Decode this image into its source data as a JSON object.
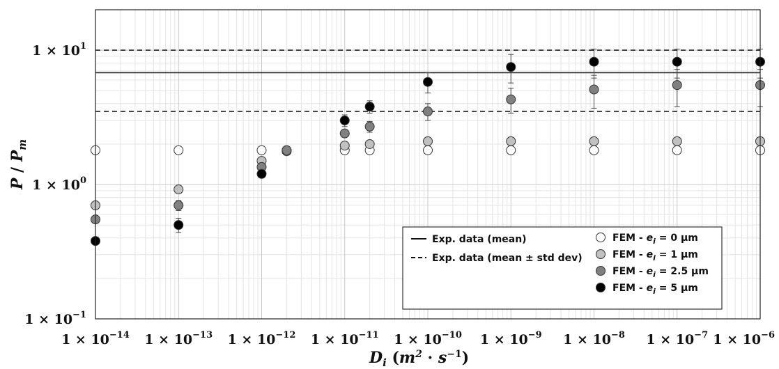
{
  "chart_data": {
    "type": "scatter",
    "xscale": "log",
    "yscale": "log",
    "xlim": [
      1e-14,
      1e-06
    ],
    "ylim": [
      0.1,
      20
    ],
    "grid": true,
    "legend_position": "bottom-right",
    "xlabel": "D_i (m^2 · s^-1)",
    "ylabel": "P / P_m",
    "x_ticks": [
      {
        "value": 1e-14,
        "base": "1 × 10",
        "exp": "−14"
      },
      {
        "value": 1e-13,
        "base": "1 × 10",
        "exp": "−13"
      },
      {
        "value": 1e-12,
        "base": "1 × 10",
        "exp": "−12"
      },
      {
        "value": 1e-11,
        "base": "1 × 10",
        "exp": "−11"
      },
      {
        "value": 1e-10,
        "base": "1 × 10",
        "exp": "−10"
      },
      {
        "value": 1e-09,
        "base": "1 × 10",
        "exp": "−9"
      },
      {
        "value": 1e-08,
        "base": "1 × 10",
        "exp": "−8"
      },
      {
        "value": 1e-07,
        "base": "1 × 10",
        "exp": "−7"
      },
      {
        "value": 1e-06,
        "base": "1 × 10",
        "exp": "−6"
      }
    ],
    "y_ticks": [
      {
        "value": 0.1,
        "base": "1 × 10",
        "exp": "−1"
      },
      {
        "value": 1,
        "base": "1 × 10",
        "exp": "0"
      },
      {
        "value": 10,
        "base": "1 × 10",
        "exp": "1"
      }
    ],
    "reference_lines": [
      {
        "name": "Exp. data (mean)",
        "y": 6.8,
        "style": "solid"
      },
      {
        "name": "Exp. data (mean ± std dev)",
        "y": 10.0,
        "style": "dashed"
      },
      {
        "name": "Exp. data (mean ± std dev)",
        "y": 3.5,
        "style": "dashed"
      }
    ],
    "series": [
      {
        "name": "FEM - e_i = 0 μm",
        "color": "#ffffff",
        "points": [
          {
            "x": 1e-14,
            "y": 1.8
          },
          {
            "x": 1e-13,
            "y": 1.8
          },
          {
            "x": 1e-12,
            "y": 1.8
          },
          {
            "x": 2e-12,
            "y": 1.8
          },
          {
            "x": 1e-11,
            "y": 1.8
          },
          {
            "x": 2e-11,
            "y": 1.8
          },
          {
            "x": 1e-10,
            "y": 1.8
          },
          {
            "x": 1e-09,
            "y": 1.8
          },
          {
            "x": 1e-08,
            "y": 1.8
          },
          {
            "x": 1e-07,
            "y": 1.8
          },
          {
            "x": 1e-06,
            "y": 1.8
          }
        ]
      },
      {
        "name": "FEM - e_i = 1 μm",
        "color": "#c0c0c0",
        "points": [
          {
            "x": 1e-14,
            "y": 0.7
          },
          {
            "x": 1e-13,
            "y": 0.92
          },
          {
            "x": 1e-12,
            "y": 1.5
          },
          {
            "x": 2e-12,
            "y": 1.77
          },
          {
            "x": 1e-11,
            "y": 1.95
          },
          {
            "x": 2e-11,
            "y": 2.0
          },
          {
            "x": 1e-10,
            "y": 2.1
          },
          {
            "x": 1e-09,
            "y": 2.1
          },
          {
            "x": 1e-08,
            "y": 2.1
          },
          {
            "x": 1e-07,
            "y": 2.1
          },
          {
            "x": 1e-06,
            "y": 2.1
          }
        ]
      },
      {
        "name": "FEM - e_i = 2.5 μm",
        "color": "#808080",
        "points": [
          {
            "x": 1e-14,
            "y": 0.55
          },
          {
            "x": 1e-13,
            "y": 0.7,
            "err": 0.06
          },
          {
            "x": 1e-12,
            "y": 1.35
          },
          {
            "x": 2e-12,
            "y": 1.8
          },
          {
            "x": 1e-11,
            "y": 2.4
          },
          {
            "x": 2e-11,
            "y": 2.7,
            "err": 0.25
          },
          {
            "x": 1e-10,
            "y": 3.5,
            "err": 0.5
          },
          {
            "x": 1e-09,
            "y": 4.3,
            "err": 0.9
          },
          {
            "x": 1e-08,
            "y": 5.1,
            "err": 1.4
          },
          {
            "x": 1e-07,
            "y": 5.5,
            "err": 1.7
          },
          {
            "x": 1e-06,
            "y": 5.5,
            "err": 1.7
          }
        ]
      },
      {
        "name": "FEM - e_i = 5 μm",
        "color": "#000000",
        "points": [
          {
            "x": 1e-14,
            "y": 0.38
          },
          {
            "x": 1e-13,
            "y": 0.5,
            "err": 0.06
          },
          {
            "x": 1e-12,
            "y": 1.2
          },
          {
            "x": 1e-11,
            "y": 3.0,
            "err": 0.3
          },
          {
            "x": 2e-11,
            "y": 3.8,
            "err": 0.4
          },
          {
            "x": 1e-10,
            "y": 5.8,
            "err": 1.0
          },
          {
            "x": 1e-09,
            "y": 7.5,
            "err": 1.8
          },
          {
            "x": 1e-08,
            "y": 8.2,
            "err": 2.0
          },
          {
            "x": 1e-07,
            "y": 8.2,
            "err": 2.0
          },
          {
            "x": 1e-06,
            "y": 8.2,
            "err": 2.0
          }
        ]
      }
    ],
    "legend": {
      "mean_line": "Exp. data (mean)",
      "std_line": "Exp. data (mean ± std dev)",
      "fem_prefix": "FEM - ",
      "entries": [
        {
          "var": "e",
          "sub": "i",
          "rest": " = 0 μm",
          "color": "#ffffff"
        },
        {
          "var": "e",
          "sub": "i",
          "rest": " = 1 μm",
          "color": "#c0c0c0"
        },
        {
          "var": "e",
          "sub": "i",
          "rest": " = 2.5 μm",
          "color": "#808080"
        },
        {
          "var": "e",
          "sub": "i",
          "rest": " = 5 μm",
          "color": "#000000"
        }
      ]
    }
  }
}
